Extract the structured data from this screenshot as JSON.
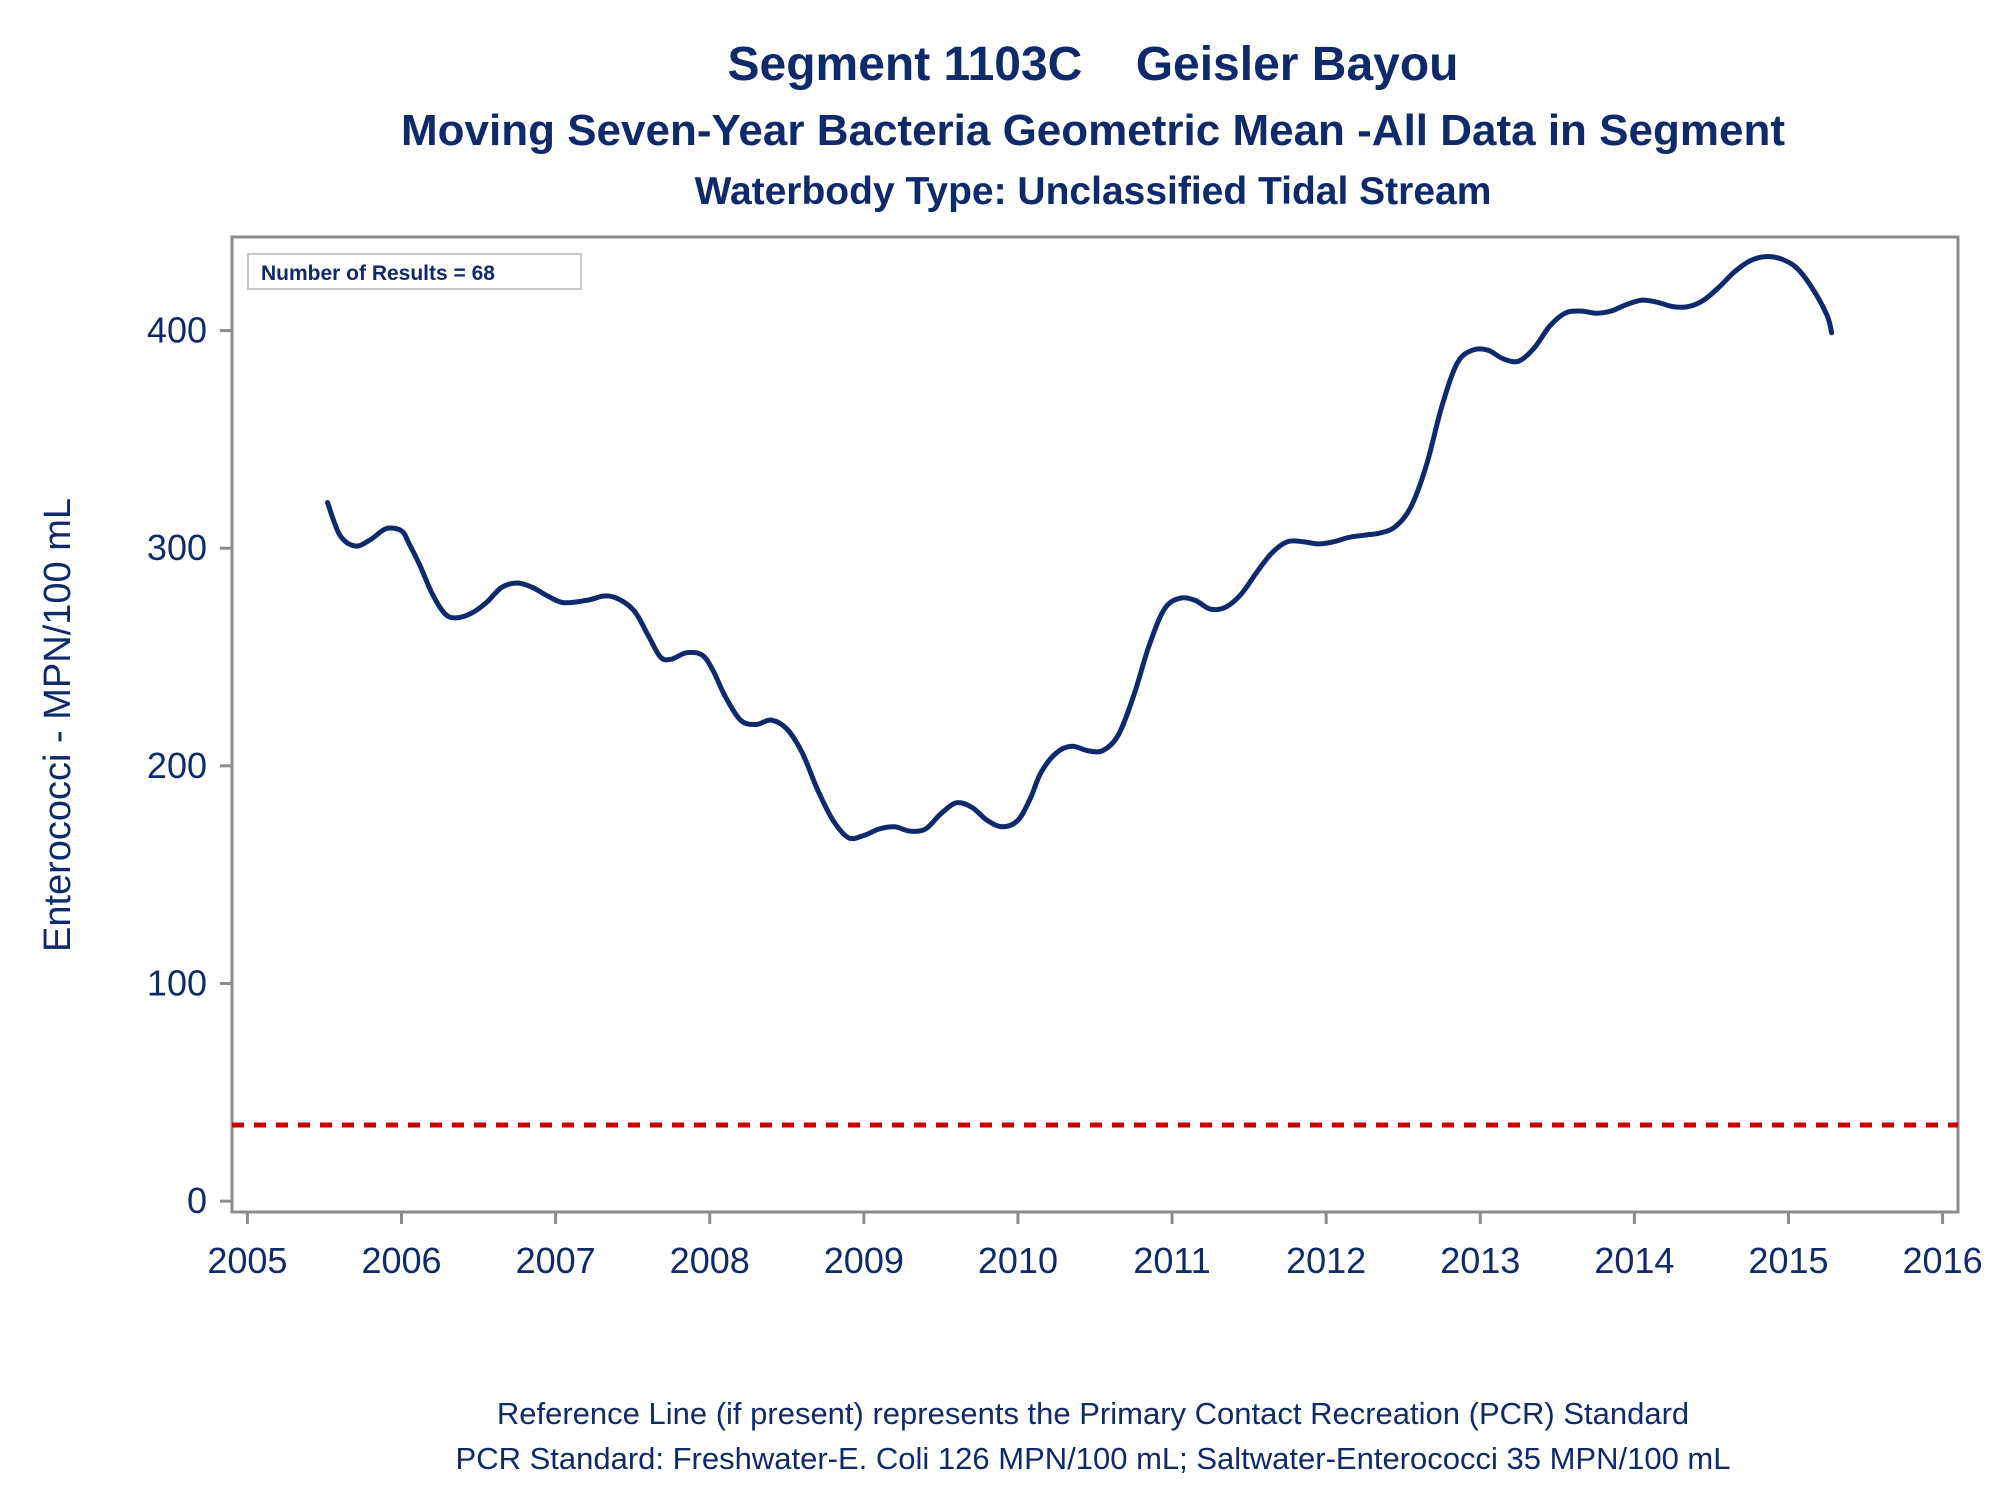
{
  "chart_data": {
    "type": "line",
    "title": "Segment 1103C    Geisler Bayou",
    "subtitle": "Moving Seven-Year Bacteria Geometric Mean -All Data in Segment",
    "subtitle2": "Waterbody Type: Unclassified Tidal Stream",
    "xlabel": "",
    "ylabel": "Enterococci - MPN/100 mL",
    "xlim": [
      2004.9,
      2016.1
    ],
    "ylim": [
      -5,
      443
    ],
    "x_ticks": [
      2005,
      2006,
      2007,
      2008,
      2009,
      2010,
      2011,
      2012,
      2013,
      2014,
      2015,
      2016
    ],
    "x_tick_labels": [
      "2005",
      "2006",
      "2007",
      "2008",
      "2009",
      "2010",
      "2011",
      "2012",
      "2013",
      "2014",
      "2015",
      "2016"
    ],
    "y_ticks": [
      0,
      100,
      200,
      300,
      400
    ],
    "y_tick_labels": [
      "0",
      "100",
      "200",
      "300",
      "400"
    ],
    "annotation": "Number of Results = 68",
    "reference_line": {
      "value": 35,
      "color": "#cc0000",
      "style": "dashed"
    },
    "series": [
      {
        "name": "Moving Seven-Year Geometric Mean",
        "color": "#0f2a6b",
        "x": [
          2005.52,
          2005.6,
          2005.7,
          2005.8,
          2005.9,
          2006.0,
          2006.05,
          2006.12,
          2006.2,
          2006.28,
          2006.35,
          2006.45,
          2006.55,
          2006.65,
          2006.75,
          2006.85,
          2006.95,
          2007.05,
          2007.2,
          2007.35,
          2007.5,
          2007.6,
          2007.68,
          2007.75,
          2007.85,
          2007.95,
          2008.02,
          2008.1,
          2008.2,
          2008.3,
          2008.4,
          2008.5,
          2008.6,
          2008.7,
          2008.8,
          2008.9,
          2009.0,
          2009.1,
          2009.2,
          2009.3,
          2009.4,
          2009.5,
          2009.6,
          2009.7,
          2009.8,
          2009.9,
          2010.0,
          2010.08,
          2010.15,
          2010.25,
          2010.35,
          2010.45,
          2010.55,
          2010.65,
          2010.75,
          2010.85,
          2010.95,
          2011.05,
          2011.15,
          2011.25,
          2011.35,
          2011.45,
          2011.55,
          2011.65,
          2011.75,
          2011.85,
          2011.95,
          2012.05,
          2012.15,
          2012.25,
          2012.35,
          2012.45,
          2012.55,
          2012.65,
          2012.75,
          2012.85,
          2012.95,
          2013.05,
          2013.15,
          2013.25,
          2013.35,
          2013.45,
          2013.55,
          2013.65,
          2013.75,
          2013.85,
          2013.95,
          2014.05,
          2014.15,
          2014.25,
          2014.35,
          2014.45,
          2014.55,
          2014.65,
          2014.75,
          2014.85,
          2014.95,
          2015.05,
          2015.15,
          2015.25,
          2015.28
        ],
        "values": [
          321,
          306,
          301,
          304,
          309,
          308,
          302,
          292,
          279,
          270,
          268,
          270,
          275,
          282,
          284,
          282,
          278,
          275,
          276,
          278,
          272,
          260,
          250,
          249,
          252,
          251,
          244,
          232,
          221,
          219,
          221,
          217,
          206,
          189,
          175,
          167,
          168,
          171,
          172,
          170,
          171,
          178,
          183,
          181,
          175,
          172,
          175,
          185,
          197,
          206,
          209,
          207,
          207,
          214,
          232,
          255,
          272,
          277,
          276,
          272,
          273,
          279,
          289,
          298,
          303,
          303,
          302,
          303,
          305,
          306,
          307,
          310,
          319,
          338,
          365,
          385,
          391,
          391,
          387,
          386,
          392,
          402,
          408,
          409,
          408,
          409,
          412,
          414,
          413,
          411,
          411,
          414,
          420,
          427,
          432,
          434,
          433,
          429,
          420,
          407,
          399
        ]
      }
    ],
    "footnote_1": "Reference Line (if present) represents the Primary Contact Recreation (PCR) Standard",
    "footnote_2": "PCR Standard: Freshwater-E. Coli 126 MPN/100 mL; Saltwater-Enterococci 35 MPN/100 mL"
  }
}
